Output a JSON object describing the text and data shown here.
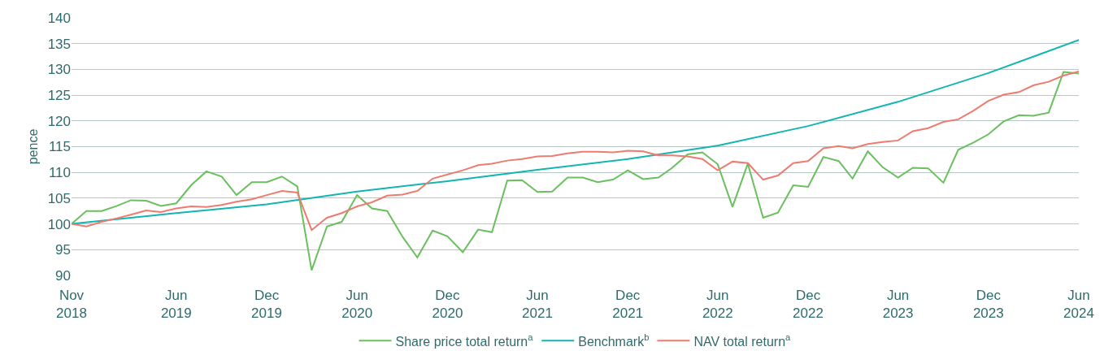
{
  "chart_data": {
    "type": "line",
    "ylabel": "pence",
    "x": [
      "2018-11",
      "2018-12",
      "2019-01",
      "2019-02",
      "2019-03",
      "2019-04",
      "2019-05",
      "2019-06",
      "2019-07",
      "2019-08",
      "2019-09",
      "2019-10",
      "2019-11",
      "2019-12",
      "2020-01",
      "2020-02",
      "2020-03",
      "2020-04",
      "2020-05",
      "2020-06",
      "2020-07",
      "2020-08",
      "2020-09",
      "2020-10",
      "2020-11",
      "2020-12",
      "2021-01",
      "2021-02",
      "2021-03",
      "2021-04",
      "2021-05",
      "2021-06",
      "2021-07",
      "2021-08",
      "2021-09",
      "2021-10",
      "2021-11",
      "2021-12",
      "2022-01",
      "2022-02",
      "2022-03",
      "2022-04",
      "2022-05",
      "2022-06",
      "2022-07",
      "2022-08",
      "2022-09",
      "2022-10",
      "2022-11",
      "2022-12",
      "2023-01",
      "2023-02",
      "2023-03",
      "2023-04",
      "2023-05",
      "2023-06",
      "2023-07",
      "2023-08",
      "2023-09",
      "2023-10",
      "2023-11",
      "2023-12",
      "2024-01",
      "2024-02",
      "2024-03",
      "2024-04",
      "2024-05",
      "2024-06"
    ],
    "series": [
      {
        "name": "Share price total return$^{a}$",
        "color": "#6abf5e",
        "values": [
          100,
          102.5,
          102.5,
          103.5,
          104.6,
          104.5,
          103.5,
          104,
          107.5,
          110.2,
          109.2,
          105.6,
          108.1,
          108.1,
          109.2,
          107.3,
          91,
          99.5,
          100.4,
          105.6,
          103,
          102.5,
          97.5,
          93.5,
          98.7,
          97.6,
          94.5,
          98.9,
          98.4,
          108.4,
          108.5,
          106.2,
          106.3,
          109,
          109,
          108.1,
          108.6,
          110.4,
          108.7,
          109,
          110.9,
          113.5,
          113.9,
          111.6,
          103.3,
          111.7,
          101.2,
          102.2,
          107.5,
          107.2,
          113,
          112.2,
          108.8,
          114.1,
          111,
          109,
          110.9,
          110.8,
          108,
          114.4,
          115.8,
          117.4,
          119.9,
          121.1,
          121,
          121.6,
          129.5,
          129.2
        ]
      },
      {
        "name": "Benchmark$^{b}$",
        "color": "#13b5b1",
        "x": [
          "2018-11",
          "2019-06",
          "2019-12",
          "2020-06",
          "2020-12",
          "2021-06",
          "2021-12",
          "2022-06",
          "2022-12",
          "2023-06",
          "2023-12",
          "2024-06"
        ],
        "values": [
          100,
          102.1,
          103.8,
          106.3,
          108.3,
          110.5,
          112.6,
          115.2,
          119,
          123.7,
          129.3,
          135.7
        ]
      },
      {
        "name": "NAV total return$^{a}$",
        "color": "#ee7b6f",
        "values": [
          100,
          99.5,
          100.4,
          101.1,
          101.8,
          102.6,
          102.3,
          103,
          103.4,
          103.3,
          103.7,
          104.3,
          104.8,
          105.6,
          106.4,
          106.1,
          98.8,
          101.2,
          102.1,
          103.4,
          104.2,
          105.5,
          105.7,
          106.4,
          108.8,
          109.6,
          110.4,
          111.4,
          111.7,
          112.3,
          112.6,
          113.1,
          113.2,
          113.7,
          114,
          114,
          113.9,
          114.2,
          114.1,
          113.3,
          113.3,
          113.1,
          112.6,
          110.4,
          112.1,
          111.8,
          108.6,
          109.4,
          111.8,
          112.2,
          114.7,
          115.1,
          114.7,
          115.5,
          115.9,
          116.2,
          118,
          118.6,
          119.8,
          120.3,
          122,
          123.9,
          125.1,
          125.6,
          126.9,
          127.6,
          128.8,
          129.6
        ]
      }
    ],
    "xlim": [
      "2018-11",
      "2024-06"
    ],
    "xticks": [
      {
        "value": "2018-11",
        "label": "Nov\n2018"
      },
      {
        "value": "2019-06",
        "label": "Jun\n2019"
      },
      {
        "value": "2019-12",
        "label": "Dec\n2019"
      },
      {
        "value": "2020-06",
        "label": "Jun\n2020"
      },
      {
        "value": "2020-12",
        "label": "Dec\n2020"
      },
      {
        "value": "2021-06",
        "label": "Jun\n2021"
      },
      {
        "value": "2021-12",
        "label": "Dec\n2021"
      },
      {
        "value": "2022-06",
        "label": "Jun\n2022"
      },
      {
        "value": "2022-12",
        "label": "Dec\n2022"
      },
      {
        "value": "2023-06",
        "label": "Jun\n2023"
      },
      {
        "value": "2023-12",
        "label": "Dec\n2023"
      },
      {
        "value": "2024-06",
        "label": "Jun\n2024"
      }
    ],
    "ylim": [
      90,
      140
    ],
    "yticks": [
      90,
      95,
      100,
      105,
      110,
      115,
      120,
      125,
      130,
      135,
      140
    ],
    "grid": "y",
    "legend": "bottom",
    "marker": "none",
    "line_style": "solid"
  }
}
